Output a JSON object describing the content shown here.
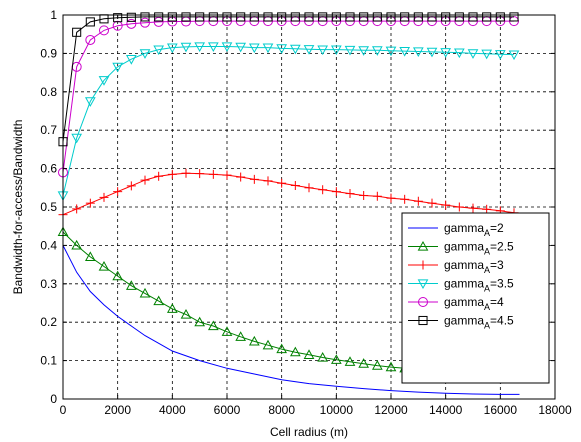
{
  "chart_data": {
    "type": "line",
    "xlabel": "Cell radius (m)",
    "ylabel": "Bandwidth-for-access/Bandwidth",
    "xlim": [
      0,
      18000
    ],
    "ylim": [
      0,
      1
    ],
    "xticks": [
      "0",
      "2000",
      "4000",
      "6000",
      "8000",
      "10000",
      "12000",
      "14000",
      "16000",
      "18000"
    ],
    "yticks": [
      "0",
      "0.1",
      "0.2",
      "0.3",
      "0.4",
      "0.5",
      "0.6",
      "0.7",
      "0.8",
      "0.9",
      "1"
    ],
    "grid": true,
    "legend_position": "center-right",
    "series": [
      {
        "name_main": "gamma",
        "name_sub": "A",
        "name_suffix": "=2",
        "color": "#0000ff",
        "marker": "none",
        "x": [
          0,
          500,
          1000,
          1500,
          2000,
          2500,
          3000,
          3500,
          4000,
          5000,
          6000,
          7000,
          8000,
          9000,
          10000,
          11000,
          12000,
          13000,
          14000,
          15000,
          16000,
          16700
        ],
        "y": [
          0.4,
          0.33,
          0.28,
          0.245,
          0.215,
          0.19,
          0.165,
          0.145,
          0.125,
          0.1,
          0.08,
          0.065,
          0.05,
          0.04,
          0.033,
          0.027,
          0.022,
          0.018,
          0.015,
          0.013,
          0.012,
          0.012
        ]
      },
      {
        "name_main": "gamma",
        "name_sub": "A",
        "name_suffix": "=2.5",
        "color": "#008000",
        "marker": "triangle-up",
        "x": [
          0,
          500,
          1000,
          1500,
          2000,
          2500,
          3000,
          3500,
          4000,
          4500,
          5000,
          5500,
          6000,
          6500,
          7000,
          7500,
          8000,
          8500,
          9000,
          9500,
          10000,
          10500,
          11000,
          11500,
          12000,
          12500,
          13000,
          13500,
          14000,
          14500,
          15000,
          15500,
          16000,
          16500
        ],
        "y": [
          0.435,
          0.4,
          0.37,
          0.345,
          0.32,
          0.295,
          0.275,
          0.255,
          0.235,
          0.22,
          0.2,
          0.19,
          0.175,
          0.162,
          0.15,
          0.14,
          0.13,
          0.122,
          0.115,
          0.108,
          0.102,
          0.097,
          0.092,
          0.087,
          0.083,
          0.08,
          0.077,
          0.074,
          0.071,
          0.068,
          0.066,
          0.064,
          0.062,
          0.06
        ]
      },
      {
        "name_main": "gamma",
        "name_sub": "A",
        "name_suffix": "=3",
        "color": "#ff0000",
        "marker": "plus",
        "x": [
          0,
          500,
          1000,
          1500,
          2000,
          2500,
          3000,
          3500,
          4000,
          4500,
          5000,
          5500,
          6000,
          6500,
          7000,
          7500,
          8000,
          8500,
          9000,
          9500,
          10000,
          10500,
          11000,
          11500,
          12000,
          12500,
          13000,
          13500,
          14000,
          14500,
          15000,
          15500,
          16000,
          16500
        ],
        "y": [
          0.48,
          0.495,
          0.51,
          0.525,
          0.54,
          0.555,
          0.57,
          0.58,
          0.585,
          0.588,
          0.587,
          0.585,
          0.583,
          0.578,
          0.572,
          0.568,
          0.562,
          0.556,
          0.55,
          0.545,
          0.54,
          0.535,
          0.53,
          0.528,
          0.523,
          0.52,
          0.515,
          0.51,
          0.505,
          0.5,
          0.497,
          0.494,
          0.49,
          0.485
        ]
      },
      {
        "name_main": "gamma",
        "name_sub": "A",
        "name_suffix": "=3.5",
        "color": "#00cccc",
        "marker": "triangle-down",
        "x": [
          0,
          500,
          1000,
          1500,
          2000,
          2500,
          3000,
          3500,
          4000,
          4500,
          5000,
          5500,
          6000,
          6500,
          7000,
          7500,
          8000,
          8500,
          9000,
          9500,
          10000,
          10500,
          11000,
          11500,
          12000,
          12500,
          13000,
          13500,
          14000,
          14500,
          15000,
          15500,
          16000,
          16500
        ],
        "y": [
          0.53,
          0.68,
          0.775,
          0.83,
          0.865,
          0.885,
          0.9,
          0.91,
          0.915,
          0.917,
          0.918,
          0.918,
          0.918,
          0.917,
          0.915,
          0.915,
          0.913,
          0.912,
          0.911,
          0.91,
          0.91,
          0.909,
          0.908,
          0.908,
          0.907,
          0.906,
          0.905,
          0.904,
          0.903,
          0.902,
          0.9,
          0.899,
          0.898,
          0.897
        ]
      },
      {
        "name_main": "gamma",
        "name_sub": "A",
        "name_suffix": "=4",
        "color": "#cc00cc",
        "marker": "circle",
        "x": [
          0,
          500,
          1000,
          1500,
          2000,
          2500,
          3000,
          3500,
          4000,
          4500,
          5000,
          5500,
          6000,
          6500,
          7000,
          7500,
          8000,
          8500,
          9000,
          9500,
          10000,
          10500,
          11000,
          11500,
          12000,
          12500,
          13000,
          13500,
          14000,
          14500,
          15000,
          15500,
          16000,
          16500
        ],
        "y": [
          0.59,
          0.865,
          0.935,
          0.96,
          0.972,
          0.977,
          0.98,
          0.982,
          0.983,
          0.983,
          0.984,
          0.984,
          0.984,
          0.984,
          0.984,
          0.984,
          0.984,
          0.984,
          0.984,
          0.984,
          0.984,
          0.984,
          0.984,
          0.984,
          0.984,
          0.984,
          0.984,
          0.984,
          0.984,
          0.984,
          0.984,
          0.984,
          0.984,
          0.984
        ]
      },
      {
        "name_main": "gamma",
        "name_sub": "A",
        "name_suffix": "=4.5",
        "color": "#000000",
        "marker": "square",
        "x": [
          0,
          500,
          1000,
          1500,
          2000,
          2500,
          3000,
          3500,
          4000,
          4500,
          5000,
          5500,
          6000,
          6500,
          7000,
          7500,
          8000,
          8500,
          9000,
          9500,
          10000,
          10500,
          11000,
          11500,
          12000,
          12500,
          13000,
          13500,
          14000,
          14500,
          15000,
          15500,
          16000,
          16500
        ],
        "y": [
          0.67,
          0.955,
          0.982,
          0.99,
          0.993,
          0.994,
          0.995,
          0.995,
          0.995,
          0.995,
          0.995,
          0.995,
          0.995,
          0.995,
          0.995,
          0.995,
          0.995,
          0.995,
          0.995,
          0.995,
          0.995,
          0.995,
          0.995,
          0.995,
          0.995,
          0.995,
          0.995,
          0.995,
          0.995,
          0.995,
          0.995,
          0.995,
          0.995,
          0.995
        ]
      }
    ]
  }
}
